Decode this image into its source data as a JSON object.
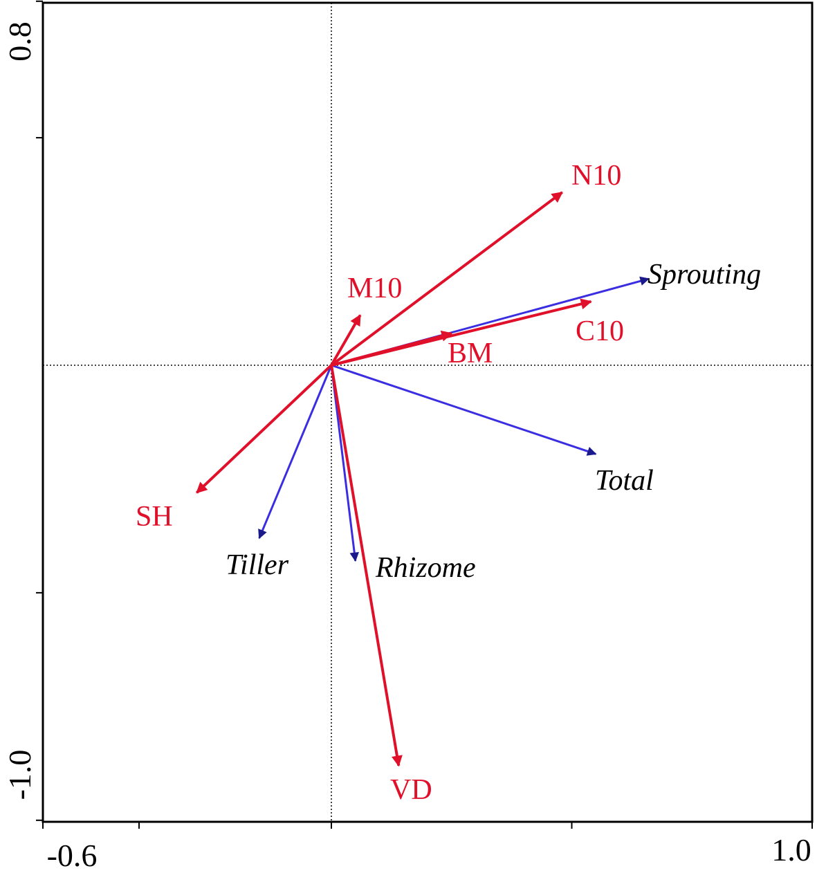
{
  "chart_data": {
    "type": "scatter",
    "subtype": "ordination-biplot",
    "title": "",
    "xlabel": "",
    "ylabel": "",
    "xlim": [
      -0.6,
      1.0
    ],
    "ylim": [
      -1.0,
      0.8
    ],
    "x_tick_labels": [
      "-0.6",
      "1.0"
    ],
    "y_tick_labels": [
      "0.8",
      "-1.0"
    ],
    "x_tick_values": [
      -0.6,
      -0.4,
      0.0,
      0.5,
      1.0
    ],
    "y_tick_values": [
      0.8,
      0.5,
      -0.5,
      -1.0
    ],
    "reference_lines": {
      "x": 0,
      "y": 0,
      "style": "dotted"
    },
    "grid": false,
    "legend": "none",
    "colors": {
      "explanatory": "#e0102a",
      "response": "#3a2ee0",
      "response_head": "#1a1a8a",
      "axes": "#000000"
    },
    "series": [
      {
        "group": "explanatory",
        "color": "#e0102a",
        "label_style": "normal",
        "vectors": [
          {
            "label": "N10",
            "x": 0.48,
            "y": 0.38
          },
          {
            "label": "M10",
            "x": 0.06,
            "y": 0.11
          },
          {
            "label": "C10",
            "x": 0.54,
            "y": 0.14
          },
          {
            "label": "BM",
            "x": 0.25,
            "y": 0.07
          },
          {
            "label": "SH",
            "x": -0.28,
            "y": -0.28
          },
          {
            "label": "VD",
            "x": 0.14,
            "y": -0.88
          }
        ]
      },
      {
        "group": "response",
        "color": "#3a2ee0",
        "label_style": "italic",
        "vectors": [
          {
            "label": "Sprouting",
            "x": 0.66,
            "y": 0.19
          },
          {
            "label": "Total",
            "x": 0.55,
            "y": -0.195
          },
          {
            "label": "Tiller",
            "x": -0.15,
            "y": -0.38
          },
          {
            "label": "Rhizome",
            "x": 0.05,
            "y": -0.43
          }
        ]
      }
    ]
  }
}
